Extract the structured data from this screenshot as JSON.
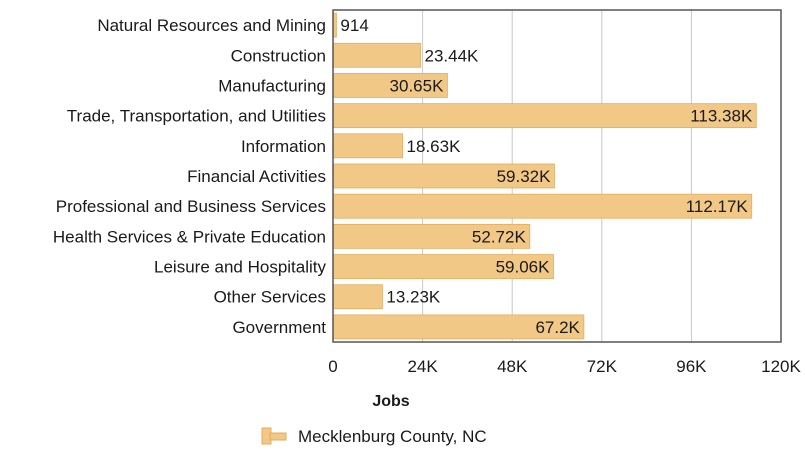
{
  "chart_data": {
    "type": "bar",
    "orientation": "horizontal",
    "categories": [
      "Natural Resources and Mining",
      "Construction",
      "Manufacturing",
      "Trade, Transportation, and Utilities",
      "Information",
      "Financial Activities",
      "Professional and Business Services",
      "Health Services & Private Education",
      "Leisure and Hospitality",
      "Other Services",
      "Government"
    ],
    "series": [
      {
        "name": "Mecklenburg County, NC",
        "values": [
          914,
          23440,
          30650,
          113380,
          18630,
          59320,
          112170,
          52720,
          59060,
          13230,
          67200
        ],
        "labels": [
          "914",
          "23.44K",
          "30.65K",
          "113.38K",
          "18.63K",
          "59.32K",
          "112.17K",
          "52.72K",
          "59.06K",
          "13.23K",
          "67.2K"
        ]
      }
    ],
    "xlabel": "Jobs",
    "xlim": [
      0,
      120000
    ],
    "xticks": [
      0,
      24000,
      48000,
      72000,
      96000,
      120000
    ],
    "xtick_labels": [
      "0",
      "24K",
      "48K",
      "72K",
      "96K",
      "120K"
    ],
    "grid": true,
    "legend_position": "bottom",
    "colors": {
      "bar": "#f2c887",
      "bar_edge": "#e3ac5f",
      "grid": "#c8c8c8",
      "frame": "#555555"
    }
  }
}
